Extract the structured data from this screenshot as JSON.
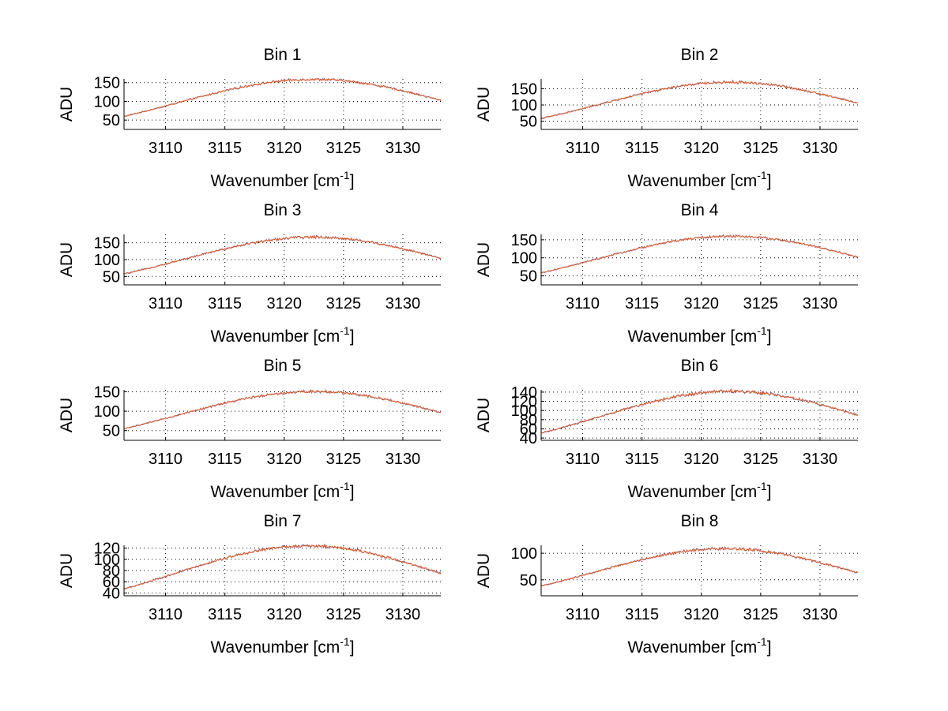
{
  "chart_data": [
    {
      "type": "line",
      "title": "Bin 1",
      "xlabel": "Wavenumber [cm",
      "xlabel_sup": "-1",
      "xlabel_close": "]",
      "ylabel": "ADU",
      "xlim": [
        3106.5,
        3133.2
      ],
      "ylim": [
        25,
        160
      ],
      "xticks": [
        "3110",
        "3115",
        "3120",
        "3125",
        "3130"
      ],
      "yticks": [
        "50",
        "100",
        "150"
      ],
      "peak": 157,
      "center": 3122.5,
      "width": 11.5,
      "noise": 2.5,
      "colors": [
        "#3b4fd1",
        "#f05a14"
      ]
    },
    {
      "type": "line",
      "title": "Bin 2",
      "xlabel": "Wavenumber [cm",
      "xlabel_sup": "-1",
      "xlabel_close": "]",
      "ylabel": "ADU",
      "xlim": [
        3106.5,
        3133.2
      ],
      "ylim": [
        25,
        180
      ],
      "xticks": [
        "3110",
        "3115",
        "3120",
        "3125",
        "3130"
      ],
      "yticks": [
        "50",
        "100",
        "150"
      ],
      "peak": 168,
      "center": 3122.5,
      "width": 11.0,
      "noise": 3,
      "colors": [
        "#3b4fd1",
        "#f05a14"
      ]
    },
    {
      "type": "line",
      "title": "Bin 3",
      "xlabel": "Wavenumber [cm",
      "xlabel_sup": "-1",
      "xlabel_close": "]",
      "ylabel": "ADU",
      "xlim": [
        3106.5,
        3133.2
      ],
      "ylim": [
        25,
        175
      ],
      "xticks": [
        "3110",
        "3115",
        "3120",
        "3125",
        "3130"
      ],
      "yticks": [
        "50",
        "100",
        "150"
      ],
      "peak": 165,
      "center": 3122.5,
      "width": 11.0,
      "noise": 3,
      "colors": [
        "#3b4fd1",
        "#f05a14"
      ]
    },
    {
      "type": "line",
      "title": "Bin 4",
      "xlabel": "Wavenumber [cm",
      "xlabel_sup": "-1",
      "xlabel_close": "]",
      "ylabel": "ADU",
      "xlim": [
        3106.5,
        3133.2
      ],
      "ylim": [
        25,
        165
      ],
      "xticks": [
        "3110",
        "3115",
        "3120",
        "3125",
        "3130"
      ],
      "yticks": [
        "50",
        "100",
        "150"
      ],
      "peak": 158,
      "center": 3122.5,
      "width": 11.3,
      "noise": 2.5,
      "colors": [
        "#3b4fd1",
        "#f05a14"
      ]
    },
    {
      "type": "line",
      "title": "Bin 5",
      "xlabel": "Wavenumber [cm",
      "xlabel_sup": "-1",
      "xlabel_close": "]",
      "ylabel": "ADU",
      "xlim": [
        3106.5,
        3133.2
      ],
      "ylim": [
        25,
        155
      ],
      "xticks": [
        "3110",
        "3115",
        "3120",
        "3125",
        "3130"
      ],
      "yticks": [
        "50",
        "100",
        "150"
      ],
      "peak": 149,
      "center": 3122.5,
      "width": 11.3,
      "noise": 2.5,
      "colors": [
        "#3b4fd1",
        "#f05a14"
      ]
    },
    {
      "type": "line",
      "title": "Bin 6",
      "xlabel": "Wavenumber [cm",
      "xlabel_sup": "-1",
      "xlabel_close": "]",
      "ylabel": "ADU",
      "xlim": [
        3106.5,
        3133.2
      ],
      "ylim": [
        35,
        145
      ],
      "xticks": [
        "3110",
        "3115",
        "3120",
        "3125",
        "3130"
      ],
      "yticks": [
        "40",
        "60",
        "80",
        "100",
        "120",
        "140"
      ],
      "peak": 140,
      "center": 3122.5,
      "width": 11.2,
      "noise": 2.5,
      "colors": [
        "#3b4fd1",
        "#f05a14"
      ]
    },
    {
      "type": "line",
      "title": "Bin 7",
      "xlabel": "Wavenumber [cm",
      "xlabel_sup": "-1",
      "xlabel_close": "]",
      "ylabel": "ADU",
      "xlim": [
        3106.5,
        3133.2
      ],
      "ylim": [
        35,
        125
      ],
      "xticks": [
        "3110",
        "3115",
        "3120",
        "3125",
        "3130"
      ],
      "yticks": [
        "40",
        "60",
        "80",
        "100",
        "120"
      ],
      "peak": 122,
      "center": 3122.0,
      "width": 11.2,
      "noise": 2,
      "colors": [
        "#3b4fd1",
        "#f05a14"
      ]
    },
    {
      "type": "line",
      "title": "Bin 8",
      "xlabel": "Wavenumber [cm",
      "xlabel_sup": "-1",
      "xlabel_close": "]",
      "ylabel": "ADU",
      "xlim": [
        3106.5,
        3133.2
      ],
      "ylim": [
        20,
        115
      ],
      "xticks": [
        "3110",
        "3115",
        "3120",
        "3125",
        "3130"
      ],
      "yticks": [
        "50",
        "100"
      ],
      "peak": 107,
      "center": 3122.0,
      "width": 10.8,
      "noise": 2,
      "colors": [
        "#3b4fd1",
        "#f05a14"
      ]
    }
  ]
}
